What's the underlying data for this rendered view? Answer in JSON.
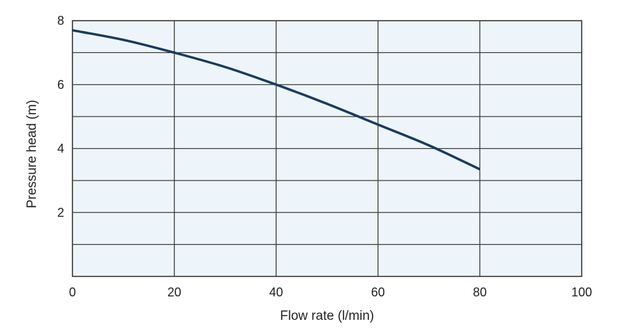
{
  "chart_data": {
    "type": "line",
    "title": "",
    "xlabel": "Flow rate (l/min)",
    "ylabel": "Pressure head (m)",
    "xlim": [
      0,
      100
    ],
    "ylim": [
      0,
      8
    ],
    "x_ticks": [
      0,
      20,
      40,
      60,
      80,
      100
    ],
    "y_ticks": [
      2,
      4,
      6,
      8
    ],
    "grid": true,
    "legend": "none",
    "series": [
      {
        "x": [
          0,
          10,
          20,
          30,
          40,
          50,
          60,
          70,
          80
        ],
        "y": [
          7.7,
          7.4,
          7.0,
          6.55,
          6.0,
          5.4,
          4.75,
          4.1,
          3.35
        ]
      }
    ]
  },
  "colors": {
    "plot_background": "#eef5fa",
    "grid": "#3a3a3a",
    "line": "#1b3a5c",
    "text": "#222222"
  }
}
